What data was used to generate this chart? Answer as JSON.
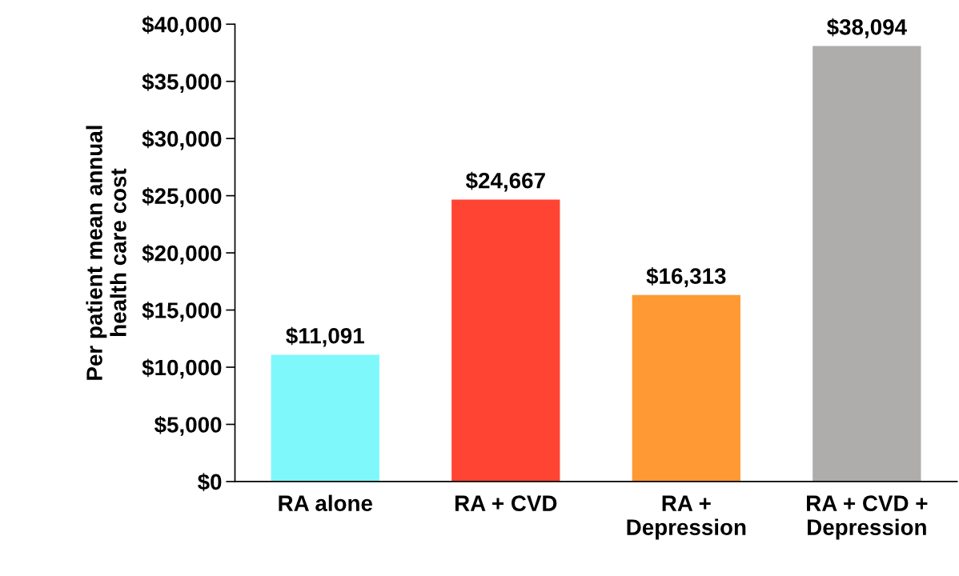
{
  "chart_data": {
    "type": "bar",
    "ylabel": "Per patient mean annual\nhealth care cost",
    "categories": [
      "RA alone",
      "RA + CVD",
      "RA +\nDepression",
      "RA + CVD +\nDepression"
    ],
    "values": [
      11091,
      24667,
      16313,
      38094
    ],
    "colors": [
      "#7ff8fc",
      "#ff4433",
      "#ff9933",
      "#aeadab"
    ],
    "value_labels": [
      "$11,091",
      "$24,667",
      "$16,313",
      "$38,094"
    ],
    "ylim": [
      0,
      40000
    ],
    "yticks": [
      {
        "value": 0,
        "label": "$0"
      },
      {
        "value": 5000,
        "label": "$5,000"
      },
      {
        "value": 10000,
        "label": "$10,000"
      },
      {
        "value": 15000,
        "label": "$15,000"
      },
      {
        "value": 20000,
        "label": "$20,000"
      },
      {
        "value": 25000,
        "label": "$25,000"
      },
      {
        "value": 30000,
        "label": "$30,000"
      },
      {
        "value": 35000,
        "label": "$35,000"
      },
      {
        "value": 40000,
        "label": "$40,000"
      }
    ],
    "grid": false,
    "legend": false
  }
}
